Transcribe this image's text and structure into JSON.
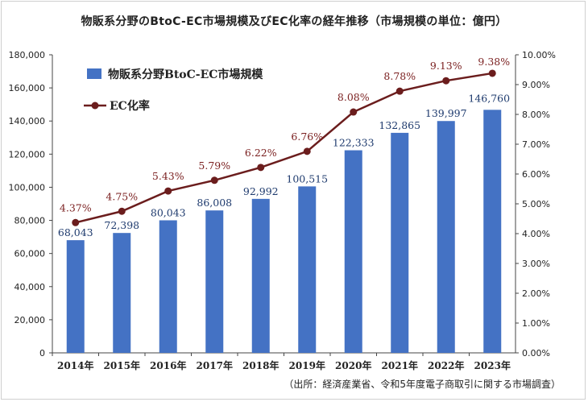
{
  "chart_data": {
    "type": "bar+line",
    "title": "物販系分野のBtoC-EC市場規模及びEC化率の経年推移（市場規模の単位：億円）",
    "source": "（出所：経済産業省、令和5年度電子商取引に関する市場調査）",
    "categories": [
      "2014年",
      "2015年",
      "2016年",
      "2017年",
      "2018年",
      "2019年",
      "2020年",
      "2021年",
      "2022年",
      "2023年"
    ],
    "series": [
      {
        "name": "物販系分野BtoC-EC市場規模",
        "type": "bar",
        "axis": "left",
        "color": "#4472c4",
        "values": [
          68043,
          72398,
          80043,
          86008,
          92992,
          100515,
          122333,
          132865,
          139997,
          146760
        ],
        "labels": [
          "68,043",
          "72,398",
          "80,043",
          "86,008",
          "92,992",
          "100,515",
          "122,333",
          "132,865",
          "139,997",
          "146,760"
        ]
      },
      {
        "name": "EC化率",
        "type": "line",
        "axis": "right",
        "color": "#6b1d1d",
        "values": [
          4.37,
          4.75,
          5.43,
          5.79,
          6.22,
          6.76,
          8.08,
          8.78,
          9.13,
          9.38
        ],
        "labels": [
          "4.37%",
          "4.75%",
          "5.43%",
          "5.79%",
          "6.22%",
          "6.76%",
          "8.08%",
          "8.78%",
          "9.13%",
          "9.38%"
        ]
      }
    ],
    "left_axis": {
      "min": 0,
      "max": 180000,
      "ticks": [
        "0",
        "20,000",
        "40,000",
        "60,000",
        "80,000",
        "100,000",
        "120,000",
        "140,000",
        "160,000",
        "180,000"
      ]
    },
    "right_axis": {
      "min": 0,
      "max": 10,
      "ticks": [
        "0.00%",
        "1.00%",
        "2.00%",
        "3.00%",
        "4.00%",
        "5.00%",
        "6.00%",
        "7.00%",
        "8.00%",
        "9.00%",
        "10.00%"
      ]
    },
    "legend_position": "top-left",
    "grid": false
  }
}
